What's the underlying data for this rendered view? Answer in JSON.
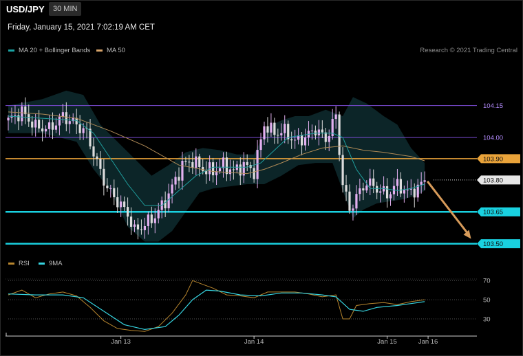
{
  "header": {
    "symbol": "USD/JPY",
    "timeframe": "30 MIN",
    "datetime": "Friday, January 15, 2021 7:02:19 AM CET",
    "credit": "Research © 2021 Trading Central"
  },
  "legend_main": [
    {
      "label": "MA 20 + Bollinger Bands",
      "color": "#1aa3a3"
    },
    {
      "label": "MA 50",
      "color": "#d8a46a"
    }
  ],
  "legend_rsi": [
    {
      "label": "RSI",
      "color": "#b8862e"
    },
    {
      "label": "9MA",
      "color": "#36d4e0"
    }
  ],
  "chart_data": [
    {
      "type": "line",
      "subtype": "candlestick",
      "ylim": [
        103.46,
        104.32
      ],
      "levels": [
        {
          "value": 104.15,
          "label": "104.15",
          "style": "thin-purple",
          "color": "#7d4bd6"
        },
        {
          "value": 104.0,
          "label": "104.00",
          "style": "thin-purple",
          "color": "#7d4bd6"
        },
        {
          "value": 103.9,
          "label": "103.90",
          "style": "resistance",
          "color": "#e9a33a"
        },
        {
          "value": 103.8,
          "label": "103.80",
          "style": "current",
          "color": "#e0e0e0"
        },
        {
          "value": 103.65,
          "label": "103.65",
          "style": "support",
          "color": "#19d1e0"
        },
        {
          "value": 103.5,
          "label": "103.50",
          "style": "support",
          "color": "#19d1e0"
        }
      ],
      "x_labels": [
        {
          "label": "Jan 13",
          "index": 33
        },
        {
          "label": "Jan 14",
          "index": 72
        },
        {
          "label": "Jan 15",
          "index": 111
        },
        {
          "label": "Jan 16",
          "index": 123
        }
      ],
      "close_path": [
        [
          0,
          104.08
        ],
        [
          4,
          104.12
        ],
        [
          8,
          104.05
        ],
        [
          12,
          104.04
        ],
        [
          16,
          104.1
        ],
        [
          20,
          104.06
        ],
        [
          23,
          104.02
        ],
        [
          26,
          103.88
        ],
        [
          29,
          103.76
        ],
        [
          32,
          103.7
        ],
        [
          35,
          103.64
        ],
        [
          37,
          103.56
        ],
        [
          40,
          103.59
        ],
        [
          43,
          103.63
        ],
        [
          46,
          103.7
        ],
        [
          49,
          103.8
        ],
        [
          51,
          103.87
        ],
        [
          54,
          103.89
        ],
        [
          57,
          103.85
        ],
        [
          60,
          103.84
        ],
        [
          63,
          103.87
        ],
        [
          66,
          103.84
        ],
        [
          69,
          103.87
        ],
        [
          72,
          103.84
        ],
        [
          75,
          104.06
        ],
        [
          78,
          104.02
        ],
        [
          81,
          104.03
        ],
        [
          84,
          103.98
        ],
        [
          87,
          104.0
        ],
        [
          90,
          104.04
        ],
        [
          93,
          103.99
        ],
        [
          96,
          104.1
        ],
        [
          98,
          103.78
        ],
        [
          100,
          103.66
        ],
        [
          102,
          103.72
        ],
        [
          105,
          103.79
        ],
        [
          108,
          103.76
        ],
        [
          111,
          103.73
        ],
        [
          114,
          103.78
        ],
        [
          117,
          103.74
        ],
        [
          120,
          103.76
        ],
        [
          122,
          103.8
        ]
      ],
      "series": [
        {
          "name": "MA 20",
          "values": [
            [
              0,
              104.1
            ],
            [
              10,
              104.09
            ],
            [
              20,
              104.08
            ],
            [
              25,
              104.02
            ],
            [
              30,
              103.9
            ],
            [
              35,
              103.78
            ],
            [
              40,
              103.68
            ],
            [
              45,
              103.68
            ],
            [
              50,
              103.75
            ],
            [
              55,
              103.82
            ],
            [
              60,
              103.86
            ],
            [
              65,
              103.86
            ],
            [
              70,
              103.86
            ],
            [
              74,
              103.88
            ],
            [
              78,
              103.94
            ],
            [
              82,
              104.0
            ],
            [
              86,
              104.01
            ],
            [
              90,
              104.02
            ],
            [
              95,
              104.02
            ],
            [
              98,
              104.0
            ],
            [
              102,
              103.85
            ],
            [
              106,
              103.76
            ],
            [
              110,
              103.76
            ],
            [
              114,
              103.75
            ],
            [
              118,
              103.76
            ],
            [
              122,
              103.78
            ]
          ]
        },
        {
          "name": "MA 50",
          "values": [
            [
              0,
              104.12
            ],
            [
              10,
              104.11
            ],
            [
              20,
              104.09
            ],
            [
              30,
              104.03
            ],
            [
              40,
              103.96
            ],
            [
              50,
              103.87
            ],
            [
              60,
              103.84
            ],
            [
              70,
              103.83
            ],
            [
              75,
              103.85
            ],
            [
              80,
              103.88
            ],
            [
              86,
              103.92
            ],
            [
              92,
              103.95
            ],
            [
              98,
              103.96
            ],
            [
              104,
              103.94
            ],
            [
              110,
              103.93
            ],
            [
              118,
              103.91
            ],
            [
              122,
              103.89
            ]
          ]
        },
        {
          "name": "Bollinger upper",
          "values": [
            [
              0,
              104.15
            ],
            [
              10,
              104.18
            ],
            [
              17,
              104.22
            ],
            [
              22,
              104.2
            ],
            [
              27,
              104.06
            ],
            [
              32,
              103.98
            ],
            [
              37,
              103.9
            ],
            [
              42,
              103.82
            ],
            [
              47,
              103.87
            ],
            [
              52,
              103.93
            ],
            [
              57,
              103.95
            ],
            [
              62,
              103.94
            ],
            [
              67,
              103.92
            ],
            [
              72,
              103.92
            ],
            [
              76,
              104.05
            ],
            [
              80,
              104.08
            ],
            [
              84,
              104.1
            ],
            [
              88,
              104.1
            ],
            [
              93,
              104.13
            ],
            [
              98,
              104.1
            ],
            [
              101,
              104.19
            ],
            [
              105,
              104.16
            ],
            [
              110,
              104.1
            ],
            [
              114,
              104.06
            ],
            [
              118,
              103.95
            ],
            [
              122,
              103.88
            ]
          ]
        },
        {
          "name": "Bollinger lower",
          "values": [
            [
              0,
              104.02
            ],
            [
              10,
              104.02
            ],
            [
              20,
              103.98
            ],
            [
              25,
              103.85
            ],
            [
              30,
              103.75
            ],
            [
              35,
              103.58
            ],
            [
              40,
              103.51
            ],
            [
              44,
              103.51
            ],
            [
              48,
              103.56
            ],
            [
              52,
              103.65
            ],
            [
              56,
              103.74
            ],
            [
              60,
              103.76
            ],
            [
              65,
              103.77
            ],
            [
              70,
              103.78
            ],
            [
              75,
              103.78
            ],
            [
              80,
              103.82
            ],
            [
              85,
              103.87
            ],
            [
              90,
              103.88
            ],
            [
              95,
              103.88
            ],
            [
              98,
              103.75
            ],
            [
              101,
              103.62
            ],
            [
              104,
              103.66
            ],
            [
              108,
              103.69
            ],
            [
              112,
              103.7
            ],
            [
              116,
              103.71
            ],
            [
              120,
              103.73
            ],
            [
              122,
              103.75
            ]
          ]
        }
      ],
      "forecast_arrow": {
        "from": [
          122,
          103.8
        ],
        "to": [
          136,
          103.51
        ]
      }
    },
    {
      "type": "line",
      "title": "RSI",
      "ylim": [
        15,
        78
      ],
      "yticks": [
        30,
        50,
        70
      ],
      "series": [
        {
          "name": "RSI",
          "values": [
            [
              0,
              55
            ],
            [
              4,
              60
            ],
            [
              8,
              52
            ],
            [
              12,
              56
            ],
            [
              16,
              58
            ],
            [
              20,
              54
            ],
            [
              24,
              42
            ],
            [
              28,
              28
            ],
            [
              32,
              20
            ],
            [
              36,
              18
            ],
            [
              40,
              17
            ],
            [
              44,
              22
            ],
            [
              48,
              36
            ],
            [
              52,
              55
            ],
            [
              54,
              70
            ],
            [
              57,
              66
            ],
            [
              60,
              62
            ],
            [
              64,
              55
            ],
            [
              68,
              54
            ],
            [
              72,
              52
            ],
            [
              76,
              58
            ],
            [
              80,
              58
            ],
            [
              84,
              58
            ],
            [
              88,
              56
            ],
            [
              92,
              53
            ],
            [
              96,
              55
            ],
            [
              98,
              30
            ],
            [
              100,
              30
            ],
            [
              102,
              44
            ],
            [
              106,
              46
            ],
            [
              110,
              47
            ],
            [
              114,
              45
            ],
            [
              118,
              48
            ],
            [
              122,
              50
            ]
          ]
        },
        {
          "name": "9MA",
          "values": [
            [
              0,
              56
            ],
            [
              8,
              55
            ],
            [
              16,
              55
            ],
            [
              22,
              52
            ],
            [
              28,
              38
            ],
            [
              34,
              24
            ],
            [
              40,
              19
            ],
            [
              46,
              22
            ],
            [
              50,
              34
            ],
            [
              54,
              50
            ],
            [
              58,
              60
            ],
            [
              62,
              59
            ],
            [
              68,
              55
            ],
            [
              74,
              54
            ],
            [
              80,
              57
            ],
            [
              86,
              57
            ],
            [
              92,
              55
            ],
            [
              96,
              53
            ],
            [
              100,
              40
            ],
            [
              104,
              38
            ],
            [
              108,
              42
            ],
            [
              114,
              44
            ],
            [
              118,
              46
            ],
            [
              122,
              48
            ]
          ]
        }
      ]
    }
  ]
}
